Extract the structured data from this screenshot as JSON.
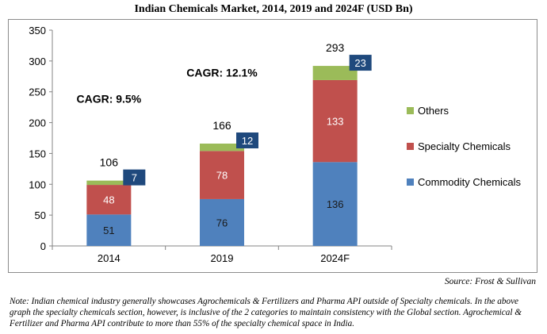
{
  "chart_data": {
    "type": "bar",
    "stacked": true,
    "title": "Indian Chemicals Market, 2014, 2019 and 2024F (USD Bn)",
    "categories": [
      "2014",
      "2019",
      "2024F"
    ],
    "series": [
      {
        "name": "Commodity Chemicals",
        "values": [
          51,
          76,
          136
        ],
        "color": "#4f81bd",
        "labels": [
          "51",
          "76",
          "136"
        ]
      },
      {
        "name": "Specialty Chemicals",
        "values": [
          48,
          78,
          133
        ],
        "color": "#c0504d",
        "labels": [
          "48",
          "78",
          "133"
        ]
      },
      {
        "name": "Others",
        "values": [
          7,
          12,
          23
        ],
        "color": "#9bbb59",
        "labels": [
          "7",
          "12",
          "23"
        ]
      }
    ],
    "totals": [
      "106",
      "166",
      "293"
    ],
    "ylim": [
      0,
      350
    ],
    "yticks": [
      "0",
      "50",
      "100",
      "150",
      "200",
      "250",
      "300",
      "350"
    ],
    "legend_position": "right",
    "annotations": [
      {
        "text": "CAGR: 9.5%",
        "x": "2014",
        "y": 232
      },
      {
        "text": "CAGR: 12.1%",
        "x": "2019",
        "y": 275
      }
    ],
    "colors": {
      "others_label_box": "#1f497d"
    }
  },
  "source": "Source: Frost & Sullivan",
  "note": "Note: Indian chemical industry generally showcases Agrochemicals & Fertilizers and Pharma API outside of Specialty chemicals. In the above graph the specialty chemicals section, however, is inclusive of the 2 categories to maintain consistency with the Global section. Agrochemical & Fertilizer and Pharma API contribute to more than 55% of the specialty chemical space in India."
}
